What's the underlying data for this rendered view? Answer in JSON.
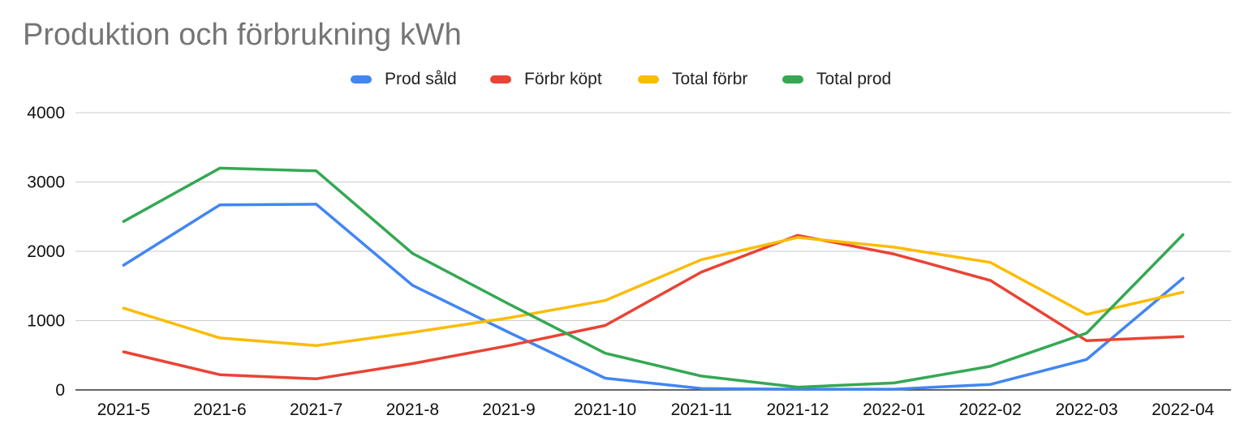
{
  "chart_data": {
    "type": "line",
    "title": "Produktion och förbrukning kWh",
    "xlabel": "",
    "ylabel": "",
    "ylim": [
      0,
      4000
    ],
    "yticks": [
      0,
      1000,
      2000,
      3000,
      4000
    ],
    "grid": true,
    "legend_position": "top",
    "categories": [
      "2021-5",
      "2021-6",
      "2021-7",
      "2021-8",
      "2021-9",
      "2021-10",
      "2021-11",
      "2021-12",
      "2022-01",
      "2022-02",
      "2022-03",
      "2022-04"
    ],
    "series": [
      {
        "name": "Prod såld",
        "color": "#4285f4",
        "values": [
          1800,
          2670,
          2680,
          1510,
          830,
          170,
          20,
          10,
          10,
          80,
          440,
          1610
        ]
      },
      {
        "name": "Förbr köpt",
        "color": "#ea4335",
        "values": [
          550,
          220,
          160,
          380,
          640,
          930,
          1700,
          2230,
          1960,
          1580,
          710,
          770
        ]
      },
      {
        "name": "Total förbr",
        "color": "#fbbc04",
        "values": [
          1180,
          750,
          640,
          830,
          1040,
          1290,
          1880,
          2200,
          2060,
          1840,
          1090,
          1410
        ]
      },
      {
        "name": "Total prod",
        "color": "#34a853",
        "values": [
          2430,
          3200,
          3160,
          1970,
          1240,
          530,
          200,
          40,
          100,
          340,
          820,
          2240
        ]
      }
    ]
  }
}
